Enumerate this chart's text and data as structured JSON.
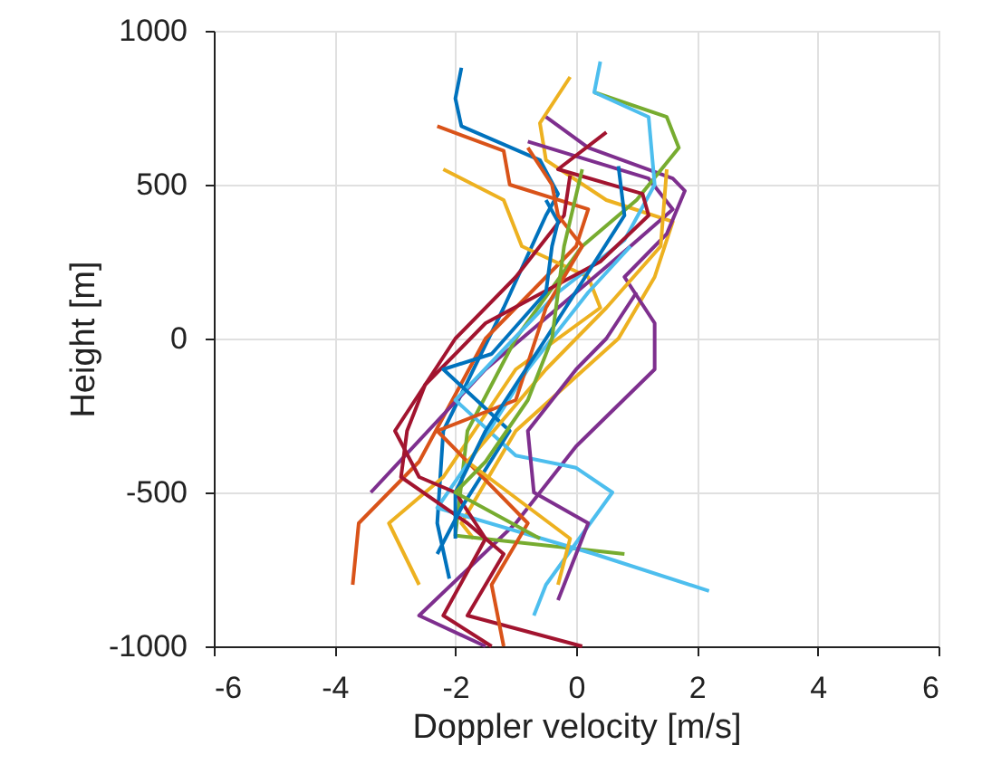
{
  "chart_data": {
    "type": "line",
    "xlabel": "Doppler velocity [m/s]",
    "ylabel": "Height [m]",
    "xlim": [
      -6,
      6
    ],
    "xticks": [
      -6,
      -4,
      -2,
      0,
      2,
      4,
      6
    ],
    "ylim": [
      -1000,
      1000
    ],
    "yticks": [
      -1000,
      -500,
      0,
      500,
      1000
    ],
    "grid": true,
    "line_style": "solid",
    "marker": "none",
    "series": [
      {
        "color": "#0072bd",
        "x": [
          -1.9,
          -2.0,
          -1.9,
          -0.6,
          -0.3,
          -0.5,
          -1.2,
          -2.2,
          -2.3,
          -2.1
        ],
        "values": [
          880,
          780,
          690,
          580,
          470,
          400,
          100,
          -300,
          -600,
          -780
        ]
      },
      {
        "color": "#d95319",
        "x": [
          -2.3,
          -1.2,
          -1.1,
          0.2,
          0.0,
          -1.5,
          -2.6,
          -3.6,
          -3.7
        ],
        "values": [
          690,
          610,
          500,
          420,
          300,
          0,
          -400,
          -600,
          -800
        ]
      },
      {
        "color": "#edb120",
        "x": [
          -2.2,
          -1.2,
          -0.9,
          0.2,
          0.4,
          -1.0,
          -2.2,
          -3.1,
          -2.6
        ],
        "values": [
          550,
          450,
          300,
          200,
          100,
          -100,
          -450,
          -600,
          -800
        ]
      },
      {
        "color": "#edb120",
        "x": [
          -0.1,
          -0.6,
          -0.5,
          0.5,
          1.6,
          1.3,
          0.7,
          -1.0,
          -1.9,
          -1.7
        ],
        "values": [
          850,
          700,
          580,
          450,
          380,
          200,
          0,
          -300,
          -600,
          -650
        ]
      },
      {
        "color": "#7e2f8e",
        "x": [
          -0.5,
          0.2,
          1.6,
          1.8,
          1.5,
          0.8,
          1.3,
          1.3,
          0.0,
          -1.0,
          -2.6,
          -1.5
        ],
        "values": [
          720,
          620,
          520,
          480,
          340,
          200,
          50,
          -100,
          -350,
          -600,
          -900,
          -1000
        ]
      },
      {
        "color": "#7e2f8e",
        "x": [
          -0.8,
          1.2,
          1.6,
          0.9,
          0.0,
          -1.5,
          -3.4
        ],
        "values": [
          640,
          520,
          420,
          300,
          150,
          -100,
          -500
        ]
      },
      {
        "color": "#77ac30",
        "x": [
          0.3,
          1.5,
          1.7,
          1.0,
          0.1,
          -1.0,
          -1.8,
          -2.0,
          0.8
        ],
        "values": [
          800,
          720,
          620,
          450,
          300,
          0,
          -300,
          -640,
          -700
        ]
      },
      {
        "color": "#4dbeee",
        "x": [
          0.4,
          0.3,
          1.2,
          1.3,
          0.8,
          -0.3,
          -2.0,
          -1.0,
          0.0,
          0.6,
          -0.5,
          -0.7
        ],
        "values": [
          900,
          800,
          720,
          500,
          320,
          150,
          -200,
          -380,
          -420,
          -500,
          -800,
          -900
        ]
      },
      {
        "color": "#4dbeee",
        "x": [
          0.9,
          0.2,
          -0.8,
          -1.6,
          -2.3,
          0.3,
          2.2
        ],
        "values": [
          300,
          150,
          -100,
          -350,
          -550,
          -700,
          -820
        ]
      },
      {
        "color": "#a2142f",
        "x": [
          0.5,
          -0.3,
          1.1,
          1.2,
          0.4,
          -1.5,
          -2.5,
          -2.8,
          -2.9,
          -1.8,
          -1.2,
          -1.8,
          0.1
        ],
        "values": [
          670,
          550,
          470,
          400,
          250,
          50,
          -150,
          -300,
          -450,
          -600,
          -700,
          -900,
          -1000
        ]
      },
      {
        "color": "#a2142f",
        "x": [
          -0.1,
          -0.2,
          -1.0,
          -2.0,
          -3.0,
          -2.6,
          -2.0,
          -1.5,
          -2.2,
          -1.4
        ],
        "values": [
          530,
          400,
          200,
          0,
          -300,
          -450,
          -500,
          -650,
          -900,
          -1000
        ]
      },
      {
        "color": "#0072bd",
        "x": [
          -0.5,
          -0.3,
          -0.4,
          -0.5,
          -1.4,
          -2.2,
          -1.1,
          -1.9,
          -2.3
        ],
        "values": [
          450,
          380,
          300,
          150,
          -50,
          -100,
          -300,
          -550,
          -700
        ]
      },
      {
        "color": "#d95319",
        "x": [
          -0.8,
          -0.4,
          -0.3,
          0.1,
          -0.5,
          -1.0,
          -2.3,
          -0.8,
          -1.4,
          -1.2
        ],
        "values": [
          620,
          500,
          400,
          300,
          100,
          -200,
          -300,
          -600,
          -800,
          -1000
        ]
      },
      {
        "color": "#edb120",
        "x": [
          1.5,
          1.4,
          0.5,
          -0.5,
          -1.8,
          -0.1,
          -0.3
        ],
        "values": [
          550,
          300,
          100,
          -100,
          -400,
          -650,
          -800
        ]
      },
      {
        "color": "#7e2f8e",
        "x": [
          1.0,
          0.5,
          0.0,
          -0.8,
          -0.7,
          0.2,
          -0.2,
          -0.3
        ],
        "values": [
          150,
          0,
          -100,
          -300,
          -500,
          -600,
          -800,
          -850
        ]
      },
      {
        "color": "#0072bd",
        "x": [
          0.7,
          0.8,
          -0.5,
          -1.5,
          -2.0,
          -2.0
        ],
        "values": [
          560,
          400,
          0,
          -300,
          -500,
          -650
        ]
      },
      {
        "color": "#77ac30",
        "x": [
          0.1,
          -0.2,
          -0.4,
          -0.8,
          -1.5,
          -2.0,
          -0.6
        ],
        "values": [
          550,
          300,
          0,
          -200,
          -400,
          -500,
          -650
        ]
      }
    ]
  }
}
